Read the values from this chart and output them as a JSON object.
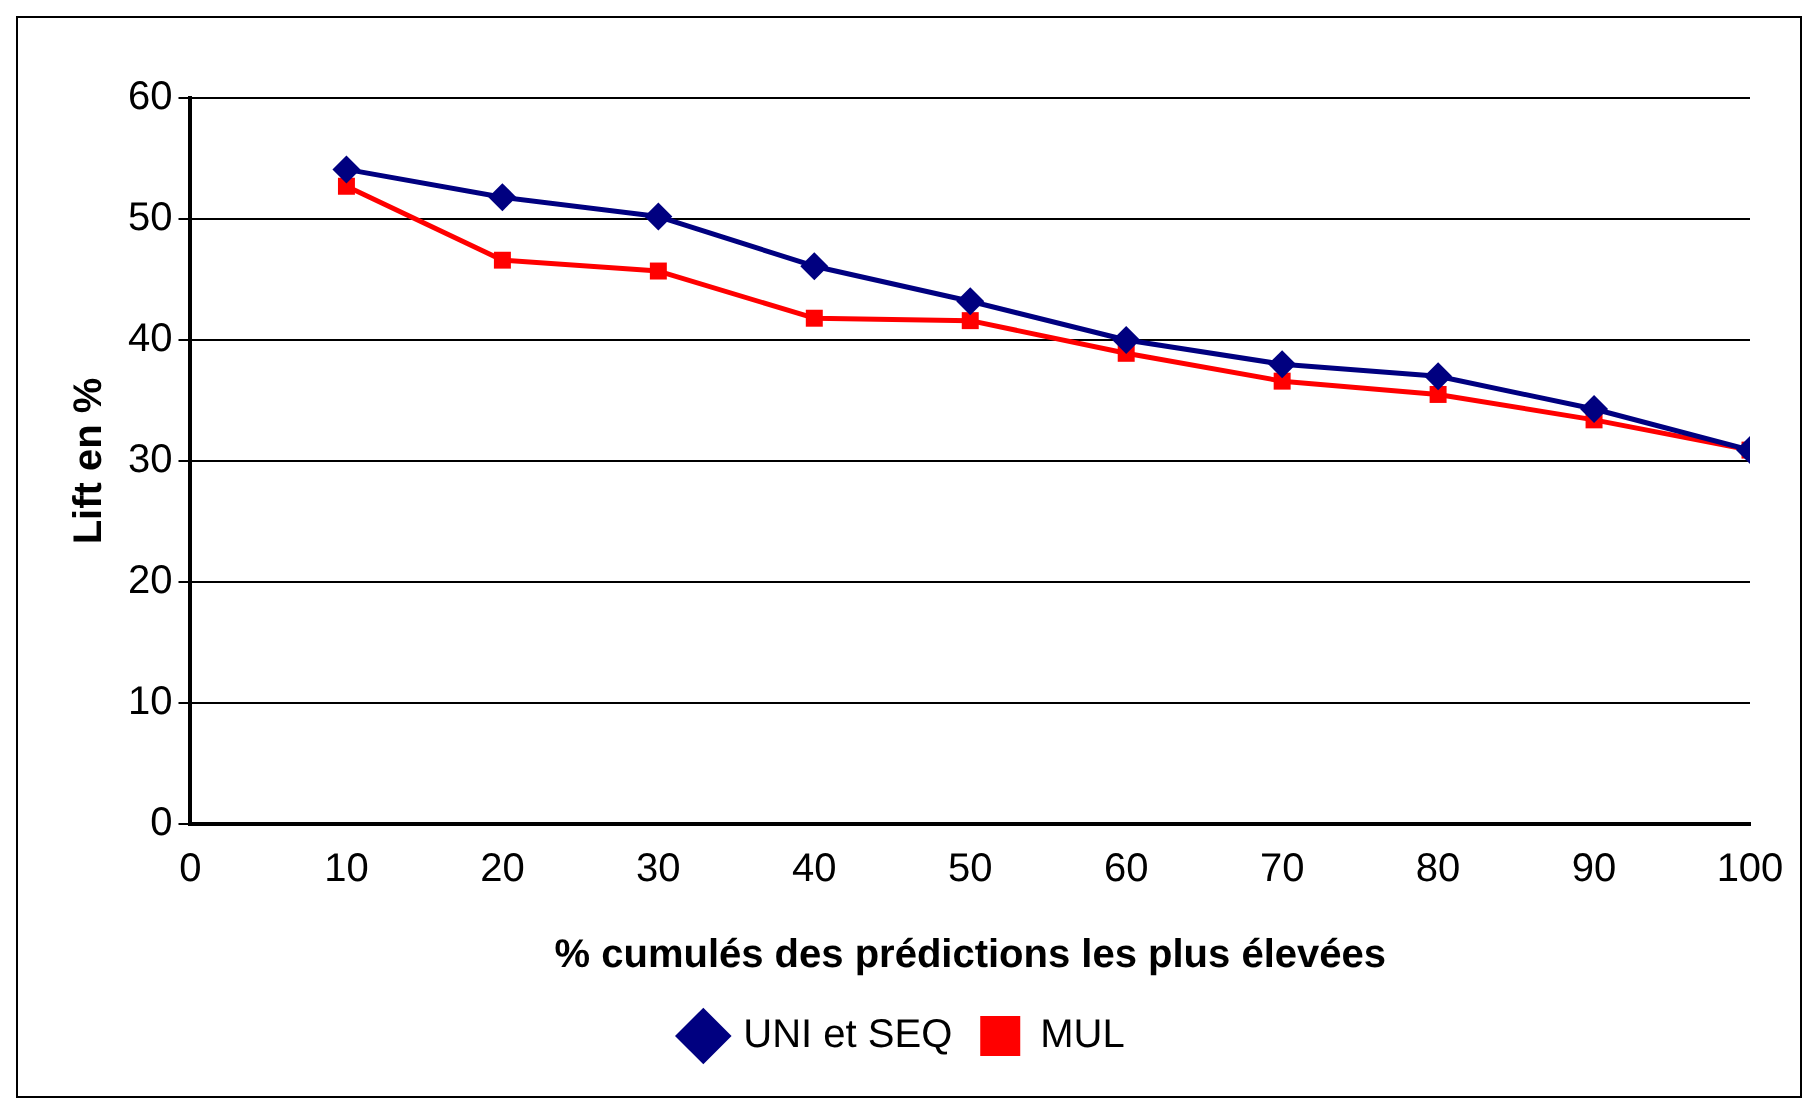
{
  "chart_data": {
    "type": "line",
    "xlabel": "% cumulés des prédictions les plus élevées",
    "ylabel": "Lift en %",
    "x": [
      10,
      20,
      30,
      40,
      50,
      60,
      70,
      80,
      90,
      100
    ],
    "series": [
      {
        "name": "UNI et SEQ",
        "color": "#000080",
        "marker": "diamond",
        "values": [
          54.1,
          51.8,
          50.2,
          46.1,
          43.2,
          40.0,
          38.0,
          37.0,
          34.3,
          30.9
        ]
      },
      {
        "name": "MUL",
        "color": "#ff0000",
        "marker": "square",
        "values": [
          52.7,
          46.6,
          45.7,
          41.8,
          41.6,
          38.9,
          36.6,
          35.5,
          33.4,
          30.9
        ]
      }
    ],
    "xlim": [
      0,
      100
    ],
    "xticks": [
      0,
      10,
      20,
      30,
      40,
      50,
      60,
      70,
      80,
      90,
      100
    ],
    "ylim": [
      0,
      60
    ],
    "yticks": [
      0,
      10,
      20,
      30,
      40,
      50,
      60
    ],
    "grid": "y",
    "legend": "bottom",
    "line_style": "solid"
  }
}
